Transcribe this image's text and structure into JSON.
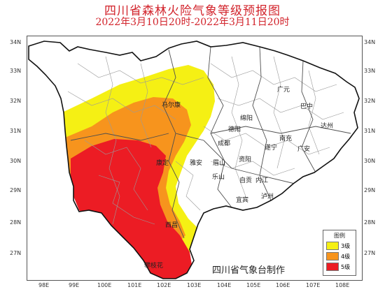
{
  "title": "四川省森林火险气象等级预报图",
  "subtitle": "2022年3月10日20时-2022年3月11日20时",
  "credit": "四川省气象台制作",
  "axes": {
    "lon_labels": [
      "98E",
      "99E",
      "100E",
      "101E",
      "102E",
      "103E",
      "104E",
      "105E",
      "106E",
      "107E",
      "108E"
    ],
    "lat_labels": [
      "34N",
      "33N",
      "32N",
      "31N",
      "30N",
      "29N",
      "28N",
      "27N"
    ]
  },
  "legend": {
    "title": "图例",
    "items": [
      {
        "label": "3级",
        "color": "#f5f014"
      },
      {
        "label": "4级",
        "color": "#f7941d"
      },
      {
        "label": "5级",
        "color": "#ec1c24"
      }
    ]
  },
  "cities": [
    "马尔康",
    "绵阳",
    "德阳",
    "成都",
    "雅安",
    "眉山",
    "资阳",
    "内江",
    "自贡",
    "泸州",
    "乐山",
    "宜宾",
    "康定",
    "西昌",
    "攀枝花",
    "广元",
    "巴中",
    "达州",
    "南充",
    "遂宁",
    "广安"
  ],
  "colors": {
    "boundary": "#555555",
    "title": "#d2222a"
  }
}
